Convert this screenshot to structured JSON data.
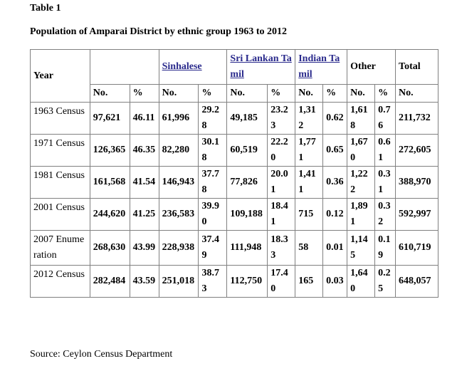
{
  "caption": "Table 1",
  "title": "Population of Amparai District by ethnic group 1963 to 2012",
  "headers": {
    "year": "Year",
    "groups": [
      "",
      "Sinhalese",
      "Sri Lankan Tamil",
      "Indian Tamil",
      "Other"
    ],
    "total": "Total",
    "no": "No.",
    "pct": "%"
  },
  "rows": [
    {
      "year": "1963 Census",
      "c1n": "97,621",
      "c1p": "46.11",
      "c2n": "61,996",
      "c2p": "29.28",
      "c3n": "49,185",
      "c3p": "23.23",
      "c4n": "1,312",
      "c4p": "0.62",
      "c5n": "1,618",
      "c5p": "0.76",
      "total": "211,732"
    },
    {
      "year": "1971 Census",
      "c1n": "126,365",
      "c1p": "46.35",
      "c2n": "82,280",
      "c2p": "30.18",
      "c3n": "60,519",
      "c3p": "22.20",
      "c4n": "1,771",
      "c4p": "0.65",
      "c5n": "1,670",
      "c5p": "0.61",
      "total": "272,605"
    },
    {
      "year": "1981 Census",
      "c1n": "161,568",
      "c1p": "41.54",
      "c2n": "146,943",
      "c2p": "37.78",
      "c3n": "77,826",
      "c3p": "20.01",
      "c4n": "1,411",
      "c4p": "0.36",
      "c5n": "1,222",
      "c5p": "0.31",
      "total": "388,970"
    },
    {
      "year": "2001 Census",
      "c1n": "244,620",
      "c1p": "41.25",
      "c2n": "236,583",
      "c2p": "39.90",
      "c3n": "109,188",
      "c3p": "18.41",
      "c4n": "715",
      "c4p": "0.12",
      "c5n": "1,891",
      "c5p": "0.32",
      "total": "592,997"
    },
    {
      "year": "2007 Enumeration",
      "c1n": "268,630",
      "c1p": "43.99",
      "c2n": "228,938",
      "c2p": "37.49",
      "c3n": "111,948",
      "c3p": "18.33",
      "c4n": "58",
      "c4p": "0.01",
      "c5n": "1,145",
      "c5p": "0.19",
      "total": "610,719"
    },
    {
      "year": "2012 Census",
      "c1n": "282,484",
      "c1p": "43.59",
      "c2n": "251,018",
      "c2p": "38.73",
      "c3n": "112,750",
      "c3p": "17.40",
      "c4n": "165",
      "c4p": "0.03",
      "c5n": "1,640",
      "c5p": "0.25",
      "total": "648,057"
    }
  ],
  "source": "Source: Ceylon Census Department",
  "colors": {
    "link": "#2a2a8c",
    "border": "#808080"
  }
}
